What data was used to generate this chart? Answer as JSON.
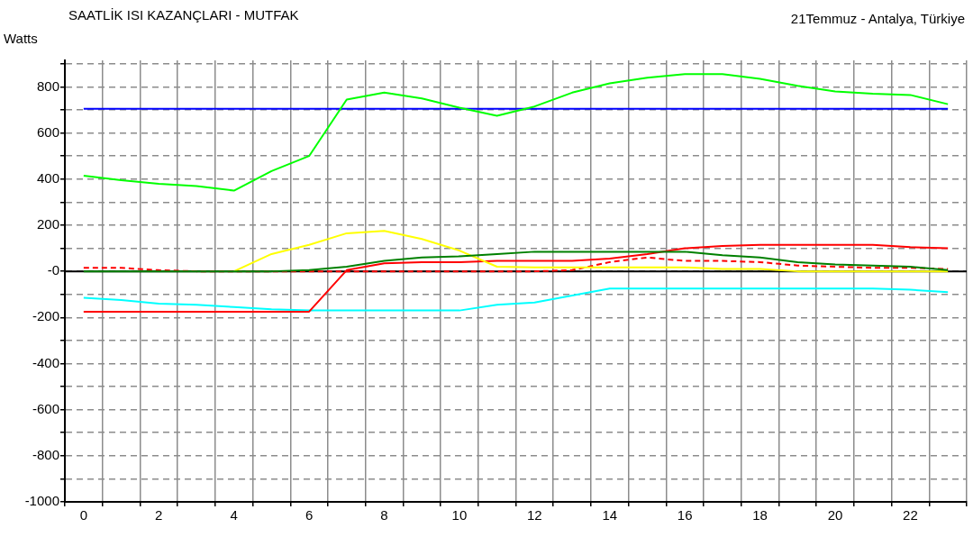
{
  "chart_data": {
    "type": "line",
    "title": "SAATLİK ISI KAZANÇLARI - MUTFAK",
    "subtitle": "21Temmuz - Antalya, Türkiye",
    "ylabel": "Watts",
    "categories": [
      "0",
      null,
      "2",
      null,
      "4",
      null,
      "6",
      null,
      "8",
      null,
      "10",
      null,
      "12",
      null,
      "14",
      null,
      "16",
      null,
      "18",
      null,
      "20",
      null,
      "22",
      null
    ],
    "series": [
      {
        "color": "#00ff00",
        "values": [
          415,
          395,
          380,
          370,
          350,
          435,
          500,
          745,
          775,
          750,
          710,
          675,
          715,
          775,
          815,
          840,
          855,
          855,
          835,
          805,
          780,
          770,
          765,
          725
        ]
      },
      {
        "color": "#0000ff",
        "values": [
          705,
          705,
          705,
          705,
          705,
          705,
          705,
          705,
          705,
          705,
          705,
          705,
          705,
          705,
          705,
          705,
          705,
          705,
          705,
          705,
          705,
          705,
          705,
          705
        ]
      },
      {
        "color": "#008000",
        "values": [
          0,
          0,
          0,
          0,
          0,
          0,
          5,
          20,
          45,
          60,
          65,
          75,
          85,
          85,
          85,
          85,
          85,
          70,
          60,
          40,
          30,
          25,
          20,
          5
        ]
      },
      {
        "color": "#ffff00",
        "values": [
          null,
          null,
          null,
          null,
          0,
          75,
          115,
          165,
          175,
          140,
          90,
          20,
          17,
          17,
          17,
          17,
          17,
          10,
          10,
          0,
          0,
          0,
          0,
          0
        ]
      },
      {
        "color": "#ff0000",
        "values": [
          -175,
          -175,
          -175,
          -175,
          -175,
          -175,
          -175,
          5,
          35,
          40,
          40,
          45,
          45,
          45,
          55,
          75,
          100,
          110,
          115,
          115,
          115,
          115,
          105,
          100
        ]
      },
      {
        "color": "#ff0000",
        "line_style": "dashed",
        "values": [
          15,
          15,
          5,
          0,
          0,
          0,
          0,
          0,
          0,
          0,
          0,
          0,
          0,
          5,
          40,
          60,
          45,
          45,
          40,
          25,
          20,
          15,
          15,
          10
        ]
      },
      {
        "color": "#00ffff",
        "values": [
          -115,
          -125,
          -140,
          -145,
          -155,
          -165,
          -170,
          -170,
          -170,
          -170,
          -170,
          -145,
          -135,
          -105,
          -75,
          -75,
          -75,
          -75,
          -75,
          -75,
          -75,
          -75,
          -80,
          -90
        ]
      }
    ],
    "ylim": [
      -1000,
      915
    ],
    "yticks": [
      -1000,
      {
        "value": -900,
        "label": null
      },
      -800,
      {
        "value": -700,
        "label": null
      },
      -600,
      {
        "value": -500,
        "label": null
      },
      -400,
      {
        "value": -300,
        "label": null
      },
      -200,
      {
        "value": -100,
        "label": null
      },
      {
        "value": 0,
        "label": "-0"
      },
      {
        "value": 100,
        "label": null
      },
      200,
      {
        "value": 300,
        "label": null
      },
      400,
      {
        "value": 500,
        "label": null
      },
      600,
      {
        "value": 700,
        "label": null
      },
      800,
      {
        "value": 900,
        "label": null
      }
    ],
    "ref_lines": [
      {
        "axis": "y",
        "value": 0,
        "color": "#000000"
      }
    ],
    "grid": true,
    "legend": false,
    "marker": "none",
    "line_style": "solid"
  }
}
